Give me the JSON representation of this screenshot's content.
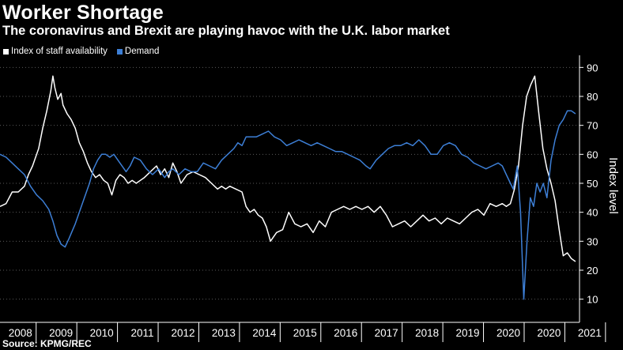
{
  "title": "Worker Shortage",
  "subtitle": "The coronavirus and Brexit are playing havoc with the U.K. labor market",
  "source": "Source: KPMG/REC",
  "colors": {
    "availability": "#ffffff",
    "demand": "#3d7fd6",
    "grid": "#5a5a5a",
    "background": "#000000"
  },
  "chart_data": {
    "type": "line",
    "ylabel": "Index level",
    "ylim": [
      2,
      92
    ],
    "yticks": [
      10,
      20,
      30,
      40,
      50,
      60,
      70,
      80,
      90
    ],
    "xlim": [
      2007.5,
      2021.75
    ],
    "xticks": [
      "2008",
      "2009",
      "2010",
      "2011",
      "2012",
      "2013",
      "2014",
      "2015",
      "2016",
      "2017",
      "2018",
      "2019",
      "2020",
      "2020",
      "2021"
    ],
    "grid": "horizontal dotted",
    "legend_position": "top-left",
    "series": [
      {
        "name": "Index of staff availability",
        "key": "availability",
        "x": [
          2007.5,
          2007.65,
          2007.8,
          2007.95,
          2008.1,
          2008.2,
          2008.3,
          2008.45,
          2008.55,
          2008.65,
          2008.75,
          2008.8,
          2008.85,
          2008.92,
          2009.0,
          2009.05,
          2009.15,
          2009.25,
          2009.35,
          2009.45,
          2009.55,
          2009.65,
          2009.75,
          2009.85,
          2009.95,
          2010.05,
          2010.15,
          2010.25,
          2010.35,
          2010.45,
          2010.55,
          2010.65,
          2010.75,
          2010.85,
          2010.95,
          2011.05,
          2011.2,
          2011.35,
          2011.45,
          2011.55,
          2011.65,
          2011.75,
          2011.85,
          2011.95,
          2012.1,
          2012.25,
          2012.4,
          2012.55,
          2012.7,
          2012.85,
          2012.95,
          2013.05,
          2013.15,
          2013.3,
          2013.45,
          2013.55,
          2013.65,
          2013.75,
          2013.85,
          2013.95,
          2014.05,
          2014.15,
          2014.3,
          2014.45,
          2014.6,
          2014.75,
          2014.9,
          2015.05,
          2015.2,
          2015.35,
          2015.5,
          2015.65,
          2015.8,
          2015.95,
          2016.1,
          2016.25,
          2016.4,
          2016.55,
          2016.7,
          2016.85,
          2017.0,
          2017.15,
          2017.3,
          2017.45,
          2017.6,
          2017.75,
          2017.9,
          2018.05,
          2018.2,
          2018.35,
          2018.5,
          2018.65,
          2018.8,
          2018.95,
          2019.1,
          2019.25,
          2019.4,
          2019.55,
          2019.7,
          2019.85,
          2019.95,
          2020.05,
          2020.15,
          2020.25,
          2020.35,
          2020.45,
          2020.55,
          2020.65,
          2020.75,
          2020.85,
          2020.95,
          2021.05,
          2021.15,
          2021.25,
          2021.35,
          2021.45,
          2021.55,
          2021.65
        ],
        "y": [
          42,
          43,
          47,
          47,
          49,
          53,
          56,
          62,
          69,
          75,
          82,
          87,
          83,
          79,
          81,
          77,
          74,
          72,
          69,
          64,
          61,
          57,
          54,
          52,
          53,
          51,
          50,
          46,
          51,
          53,
          52,
          50,
          51,
          50,
          51,
          52,
          54,
          56,
          53,
          55,
          52,
          57,
          54,
          50,
          53,
          54,
          53,
          52,
          50,
          48,
          49,
          48,
          49,
          48,
          47,
          42,
          40,
          41,
          39,
          38,
          35,
          30,
          33,
          34,
          40,
          36,
          35,
          36,
          33,
          37,
          35,
          40,
          41,
          42,
          41,
          42,
          41,
          42,
          40,
          42,
          39,
          35,
          36,
          37,
          35,
          37,
          39,
          37,
          38,
          36,
          38,
          37,
          36,
          38,
          40,
          41,
          39,
          43,
          42,
          43,
          42,
          43,
          48,
          56,
          70,
          80,
          84,
          87,
          74,
          62,
          55,
          50,
          44,
          34,
          25,
          26,
          24,
          23
        ]
      },
      {
        "name": "Demand",
        "key": "demand",
        "x": [
          2007.5,
          2007.65,
          2007.8,
          2007.95,
          2008.1,
          2008.25,
          2008.4,
          2008.55,
          2008.7,
          2008.8,
          2008.9,
          2009.0,
          2009.1,
          2009.2,
          2009.35,
          2009.5,
          2009.6,
          2009.7,
          2009.8,
          2009.9,
          2010.0,
          2010.1,
          2010.2,
          2010.3,
          2010.45,
          2010.6,
          2010.7,
          2010.8,
          2010.95,
          2011.1,
          2011.25,
          2011.4,
          2011.55,
          2011.65,
          2011.75,
          2011.9,
          2012.05,
          2012.2,
          2012.35,
          2012.5,
          2012.65,
          2012.8,
          2012.95,
          2013.1,
          2013.25,
          2013.35,
          2013.45,
          2013.55,
          2013.65,
          2013.8,
          2013.95,
          2014.1,
          2014.25,
          2014.4,
          2014.55,
          2014.7,
          2014.85,
          2015.0,
          2015.15,
          2015.3,
          2015.45,
          2015.6,
          2015.75,
          2015.9,
          2016.05,
          2016.2,
          2016.35,
          2016.5,
          2016.6,
          2016.75,
          2016.9,
          2017.05,
          2017.2,
          2017.35,
          2017.5,
          2017.65,
          2017.8,
          2017.95,
          2018.1,
          2018.25,
          2018.4,
          2018.55,
          2018.7,
          2018.85,
          2019.0,
          2019.15,
          2019.3,
          2019.45,
          2019.6,
          2019.75,
          2019.85,
          2019.95,
          2020.05,
          2020.12,
          2020.17,
          2020.22,
          2020.3,
          2020.38,
          2020.46,
          2020.54,
          2020.62,
          2020.7,
          2020.78,
          2020.86,
          2020.95,
          2021.05,
          2021.15,
          2021.25,
          2021.35,
          2021.45,
          2021.55,
          2021.65
        ],
        "y": [
          60,
          59,
          57,
          55,
          53,
          49,
          46,
          44,
          41,
          37,
          32,
          29,
          28,
          31,
          36,
          42,
          46,
          50,
          55,
          58,
          60,
          60,
          59,
          60,
          57,
          54,
          56,
          59,
          58,
          55,
          53,
          55,
          52,
          54,
          55,
          53,
          55,
          54,
          54,
          57,
          56,
          55,
          58,
          60,
          62,
          64,
          63,
          66,
          66,
          66,
          67,
          68,
          66,
          65,
          63,
          64,
          65,
          64,
          63,
          64,
          63,
          62,
          61,
          61,
          60,
          59,
          58,
          56,
          55,
          58,
          60,
          62,
          63,
          63,
          64,
          63,
          65,
          63,
          60,
          60,
          63,
          64,
          63,
          60,
          59,
          57,
          56,
          55,
          56,
          57,
          56,
          53,
          50,
          48,
          52,
          56,
          40,
          10,
          30,
          45,
          42,
          50,
          47,
          50,
          45,
          58,
          65,
          70,
          72,
          75,
          75,
          74
        ]
      }
    ]
  }
}
